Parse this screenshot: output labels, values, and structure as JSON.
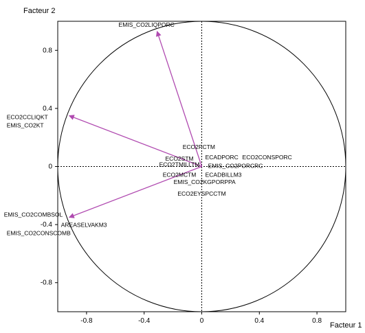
{
  "chart_data": {
    "type": "scatter",
    "subtype": "correlation-circle",
    "xlabel": "Facteur 1",
    "ylabel": "Facteur 2",
    "xlim": [
      -1.0,
      1.0
    ],
    "ylim": [
      -1.0,
      1.0
    ],
    "xticks": [
      -0.8,
      -0.4,
      0,
      0.4,
      0.8
    ],
    "yticks": [
      -0.8,
      -0.4,
      0,
      0.4,
      0.8
    ],
    "xtick_labels": [
      "-0.8",
      "-0.4",
      "0",
      "0.4",
      "0.8"
    ],
    "ytick_labels": [
      "-0.8",
      "-0.4",
      "0",
      "0.4",
      "0.8"
    ],
    "grid": false,
    "reference_lines": "dotted lines at x=0 and y=0",
    "circle_radius": 1.0,
    "arrow_color": "#b04ab0",
    "arrows": [
      {
        "label": "EMIS_CO2LIQPORC",
        "x": -0.31,
        "y": 0.93
      },
      {
        "label": "ECO2CCLIQKT",
        "x": -0.92,
        "y": 0.35
      },
      {
        "label": "EMIS_CO2KT",
        "x": -0.92,
        "y": 0.35
      },
      {
        "label": "EMIS_CO2COMBSOL",
        "x": -0.92,
        "y": -0.35
      },
      {
        "label": "AREASELVAKM3",
        "x": -0.92,
        "y": -0.35
      },
      {
        "label": "EMIS_CO2CONSCOMB",
        "x": -0.92,
        "y": -0.35
      }
    ],
    "points": [
      {
        "label": "ECO2PCTM",
        "x": -0.02,
        "y": 0.12
      },
      {
        "label": "ECO2STM",
        "x": -0.15,
        "y": 0.04
      },
      {
        "label": "ECADPORC",
        "x": 0.12,
        "y": 0.05
      },
      {
        "label": "ECO2CONSPORC",
        "x": 0.32,
        "y": 0.05
      },
      {
        "label": "ECO2TMILLTM",
        "x": -0.15,
        "y": 0.0
      },
      {
        "label": "EMIS_CO2PORCRC",
        "x": 0.12,
        "y": -0.01
      },
      {
        "label": "ECO2MCTM",
        "x": -0.15,
        "y": -0.07
      },
      {
        "label": "ECADBILLM3",
        "x": 0.12,
        "y": -0.07
      },
      {
        "label": "EMIS_CO2KGPORPPA",
        "x": 0.02,
        "y": -0.12
      },
      {
        "label": "ECO2EYSPCCTM",
        "x": 0.0,
        "y": -0.2
      }
    ]
  }
}
